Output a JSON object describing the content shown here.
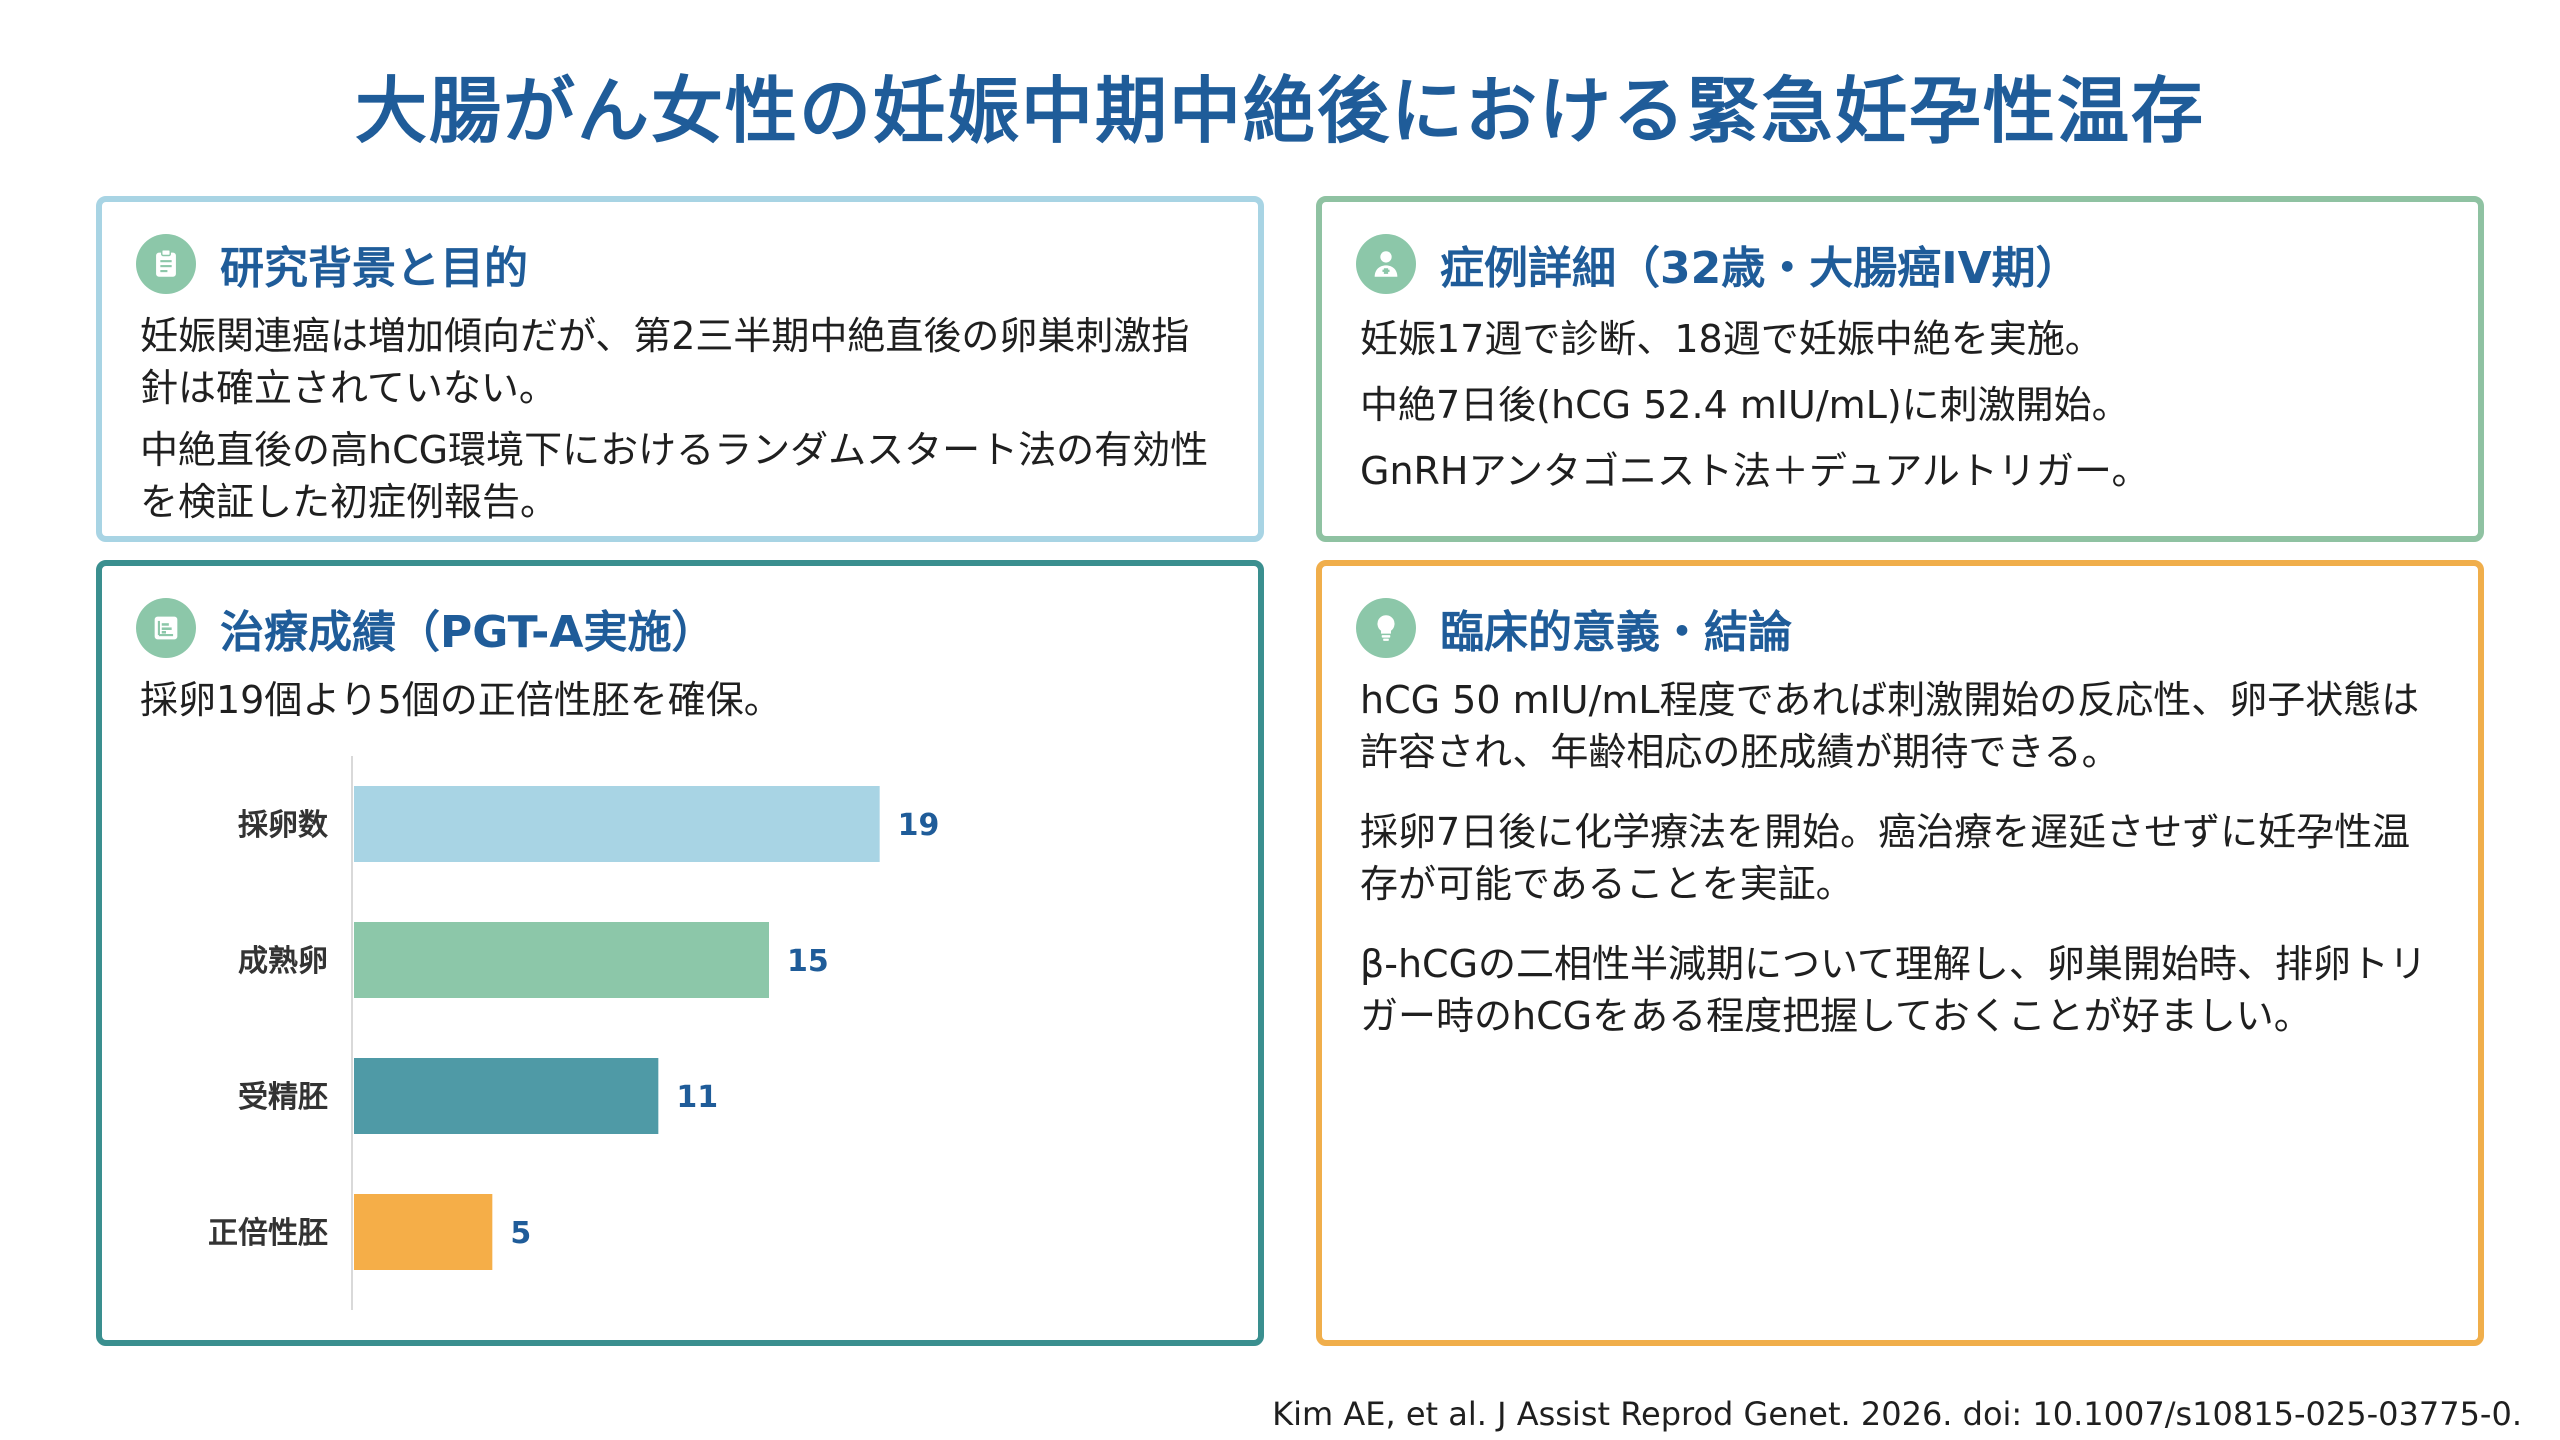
{
  "title": "大腸がん女性の妊娠中期中絶後における緊急妊孕性温存",
  "cards": {
    "background": {
      "title": "研究背景と目的",
      "icon": "clipboard-icon",
      "paragraphs": [
        "妊娠関連癌は増加傾向だが、第2三半期中絶直後の卵巣刺激指針は確立されていない。",
        "中絶直後の高hCG環境下におけるランダムスタート法の有効性を検証した初症例報告。"
      ]
    },
    "case": {
      "title": "症例詳細（32歳・大腸癌IV期）",
      "icon": "doctor-icon",
      "paragraphs": [
        "妊娠17週で診断、18週で妊娠中絶を実施。",
        "中絶7日後(hCG 52.4 mIU/mL)に刺激開始。",
        "GnRHアンタゴニスト法＋デュアルトリガー。"
      ]
    },
    "results": {
      "title": "治療成績（PGT-A実施）",
      "icon": "chart-icon",
      "summary": "採卵19個より5個の正倍性胚を確保。"
    },
    "conclusion": {
      "title": "臨床的意義・結論",
      "icon": "lightbulb-icon",
      "paragraphs": [
        "hCG 50 mIU/mL程度であれば刺激開始の反応性、卵子状態は許容され、年齢相応の胚成績が期待できる。",
        "採卵7日後に化学療法を開始。癌治療を遅延させずに妊孕性温存が可能であることを実証。",
        "β-hCGの二相性半減期について理解し、卵巣開始時、排卵トリガー時のhCGをある程度把握しておくことが好ましい。"
      ]
    }
  },
  "chart_data": {
    "type": "bar",
    "orientation": "horizontal",
    "categories": [
      "採卵数",
      "成熟卵",
      "受精胚",
      "正倍性胚"
    ],
    "values": [
      19,
      15,
      11,
      5
    ],
    "colors": [
      "#a8d4e4",
      "#8cc7a9",
      "#4f9aa6",
      "#f5ae48"
    ],
    "xlim": [
      0,
      30
    ],
    "title": "",
    "xlabel": "",
    "ylabel": ""
  },
  "citation": "Kim AE, et al. J Assist Reprod Genet. 2026. doi: 10.1007/s10815-025-03775-0."
}
